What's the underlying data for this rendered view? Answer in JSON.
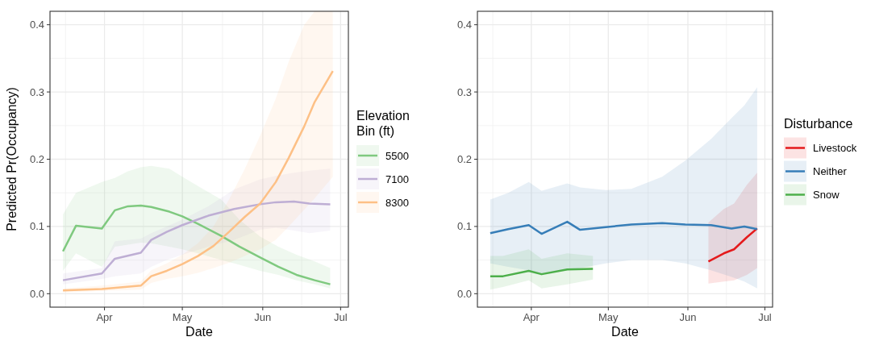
{
  "chart_data": [
    {
      "type": "line",
      "xlabel": "Date",
      "ylabel": "Predicted Pr(Occupancy)",
      "legend_title": "Elevation\nBin (ft)",
      "legend": "right",
      "grid": true,
      "xlim": [
        "--03-11",
        "--07-04"
      ],
      "xticks": [
        {
          "value": "--04-01",
          "label": "Apr"
        },
        {
          "value": "--05-01",
          "label": "May"
        },
        {
          "value": "--06-01",
          "label": "Jun"
        },
        {
          "value": "--07-01",
          "label": "Jul"
        }
      ],
      "ylim": [
        -0.02,
        0.42
      ],
      "yticks": [
        {
          "value": 0,
          "label": "0.0"
        },
        {
          "value": 0.1,
          "label": "0.1"
        },
        {
          "value": 0.2,
          "label": "0.2"
        },
        {
          "value": 0.3,
          "label": "0.3"
        },
        {
          "value": 0.4,
          "label": "0.4"
        }
      ],
      "series": [
        {
          "name": "5500",
          "color": "#7fc97f",
          "x": [
            "--03-16",
            "--03-21",
            "--03-31",
            "--04-05",
            "--04-10",
            "--04-15",
            "--04-19",
            "--04-26",
            "--05-01",
            "--05-07",
            "--05-16",
            "--05-23",
            "--05-31",
            "--06-07",
            "--06-14",
            "--06-21",
            "--06-27"
          ],
          "values": [
            0.063,
            0.101,
            0.097,
            0.124,
            0.13,
            0.131,
            0.129,
            0.122,
            0.115,
            0.104,
            0.086,
            0.07,
            0.054,
            0.04,
            0.028,
            0.02,
            0.014
          ],
          "upper": [
            0.118,
            0.15,
            0.166,
            0.172,
            0.182,
            0.188,
            0.19,
            0.186,
            0.174,
            0.16,
            0.14,
            0.11,
            0.085,
            0.07,
            0.058,
            0.048,
            0.038
          ],
          "lower": [
            0.034,
            0.06,
            0.04,
            0.07,
            0.073,
            0.076,
            0.075,
            0.07,
            0.066,
            0.06,
            0.05,
            0.043,
            0.034,
            0.028,
            0.02,
            0.014,
            0.008
          ]
        },
        {
          "name": "7100",
          "color": "#beaed4",
          "x": [
            "--03-16",
            "--03-31",
            "--04-05",
            "--04-15",
            "--04-19",
            "--04-25",
            "--05-01",
            "--05-11",
            "--05-21",
            "--05-31",
            "--06-06",
            "--06-13",
            "--06-19",
            "--06-27"
          ],
          "values": [
            0.02,
            0.03,
            0.052,
            0.061,
            0.08,
            0.092,
            0.102,
            0.116,
            0.126,
            0.133,
            0.136,
            0.137,
            0.134,
            0.133
          ],
          "upper": [
            0.03,
            0.038,
            0.078,
            0.082,
            0.09,
            0.1,
            0.11,
            0.13,
            0.155,
            0.17,
            0.175,
            0.18,
            0.183,
            0.186
          ],
          "lower": [
            0.014,
            0.022,
            0.026,
            0.03,
            0.04,
            0.05,
            0.058,
            0.07,
            0.08,
            0.095,
            0.098,
            0.094,
            0.09,
            0.094
          ]
        },
        {
          "name": "8300",
          "color": "#fdc086",
          "x": [
            "--03-16",
            "--03-31",
            "--04-15",
            "--04-19",
            "--04-25",
            "--05-01",
            "--05-07",
            "--05-13",
            "--05-19",
            "--05-25",
            "--05-31",
            "--06-06",
            "--06-11",
            "--06-17",
            "--06-21",
            "--06-28"
          ],
          "values": [
            0.005,
            0.007,
            0.012,
            0.026,
            0.034,
            0.044,
            0.056,
            0.071,
            0.092,
            0.114,
            0.134,
            0.166,
            0.202,
            0.249,
            0.285,
            0.331
          ],
          "upper": [
            0.008,
            0.012,
            0.018,
            0.035,
            0.045,
            0.058,
            0.075,
            0.1,
            0.14,
            0.185,
            0.235,
            0.29,
            0.345,
            0.4,
            0.42,
            0.42
          ],
          "lower": [
            0.002,
            0.004,
            0.006,
            0.016,
            0.022,
            0.026,
            0.031,
            0.038,
            0.046,
            0.056,
            0.066,
            0.08,
            0.1,
            0.125,
            0.142,
            0.174
          ]
        }
      ]
    },
    {
      "type": "line",
      "xlabel": "Date",
      "legend_title": "Disturbance",
      "legend": "right",
      "grid": true,
      "xlim": [
        "--03-11",
        "--07-04"
      ],
      "xticks": [
        {
          "value": "--04-01",
          "label": "Apr"
        },
        {
          "value": "--05-01",
          "label": "May"
        },
        {
          "value": "--06-01",
          "label": "Jun"
        },
        {
          "value": "--07-01",
          "label": "Jul"
        }
      ],
      "ylim": [
        -0.02,
        0.42
      ],
      "yticks": [
        {
          "value": 0,
          "label": "0.0"
        },
        {
          "value": 0.1,
          "label": "0.1"
        },
        {
          "value": 0.2,
          "label": "0.2"
        },
        {
          "value": 0.3,
          "label": "0.3"
        },
        {
          "value": 0.4,
          "label": "0.4"
        }
      ],
      "series": [
        {
          "name": "Livestock",
          "color": "#e41a1c",
          "x": [
            "--06-09",
            "--06-15",
            "--06-19",
            "--06-24",
            "--06-28"
          ],
          "values": [
            0.048,
            0.06,
            0.066,
            0.084,
            0.097
          ],
          "upper": [
            0.106,
            0.126,
            0.134,
            0.162,
            0.18
          ],
          "lower": [
            0.015,
            0.018,
            0.02,
            0.028,
            0.038
          ]
        },
        {
          "name": "Neither",
          "color": "#377eb8",
          "x": [
            "--03-16",
            "--03-23",
            "--03-31",
            "--04-05",
            "--04-15",
            "--04-20",
            "--04-30",
            "--05-10",
            "--05-22",
            "--05-31",
            "--06-10",
            "--06-18",
            "--06-23",
            "--06-28"
          ],
          "values": [
            0.09,
            0.096,
            0.102,
            0.089,
            0.107,
            0.095,
            0.099,
            0.103,
            0.105,
            0.103,
            0.102,
            0.097,
            0.1,
            0.096
          ],
          "upper": [
            0.14,
            0.15,
            0.166,
            0.153,
            0.164,
            0.158,
            0.154,
            0.156,
            0.174,
            0.198,
            0.23,
            0.261,
            0.28,
            0.307
          ],
          "lower": [
            0.045,
            0.04,
            0.035,
            0.03,
            0.035,
            0.038,
            0.045,
            0.05,
            0.05,
            0.045,
            0.035,
            0.025,
            0.018,
            0.008
          ]
        },
        {
          "name": "Snow",
          "color": "#4daf4a",
          "x": [
            "--03-16",
            "--03-21",
            "--03-31",
            "--04-05",
            "--04-15",
            "--04-25"
          ],
          "values": [
            0.026,
            0.026,
            0.034,
            0.029,
            0.036,
            0.037
          ],
          "upper": [
            0.056,
            0.056,
            0.066,
            0.052,
            0.06,
            0.056
          ],
          "lower": [
            0.006,
            0.01,
            0.02,
            0.008,
            0.014,
            0.021
          ]
        }
      ]
    }
  ]
}
